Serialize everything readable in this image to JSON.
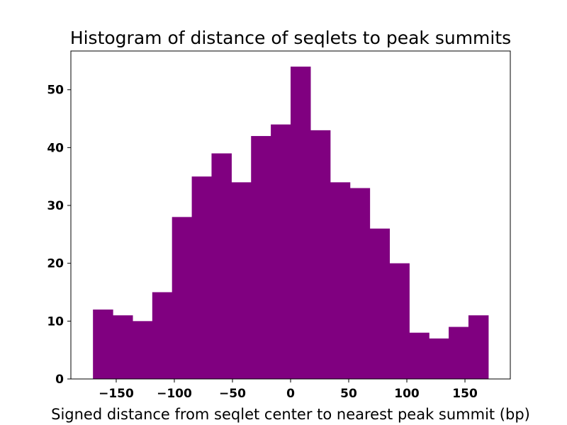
{
  "chart_data": {
    "type": "bar",
    "title": "Histogram of distance of seqlets to peak summits",
    "xlabel": "Signed distance from seqlet center to nearest peak summit (bp)",
    "ylabel": "",
    "bar_color": "#800080",
    "bins": {
      "start": -170,
      "width": 17,
      "counts": [
        12,
        11,
        10,
        15,
        28,
        35,
        39,
        34,
        42,
        44,
        54,
        43,
        34,
        33,
        26,
        20,
        8,
        7,
        9,
        11
      ]
    },
    "xlim": [
      -189,
      189
    ],
    "ylim": [
      0,
      56.7
    ],
    "x_ticks": [
      {
        "value": -150,
        "label": "−150"
      },
      {
        "value": -100,
        "label": "−100"
      },
      {
        "value": -50,
        "label": "−50"
      },
      {
        "value": 0,
        "label": "0"
      },
      {
        "value": 50,
        "label": "50"
      },
      {
        "value": 100,
        "label": "100"
      },
      {
        "value": 150,
        "label": "150"
      }
    ],
    "y_ticks": [
      {
        "value": 0,
        "label": "0"
      },
      {
        "value": 10,
        "label": "10"
      },
      {
        "value": 20,
        "label": "20"
      },
      {
        "value": 30,
        "label": "30"
      },
      {
        "value": 40,
        "label": "40"
      },
      {
        "value": 50,
        "label": "50"
      }
    ],
    "grid": false,
    "legend": "none"
  }
}
